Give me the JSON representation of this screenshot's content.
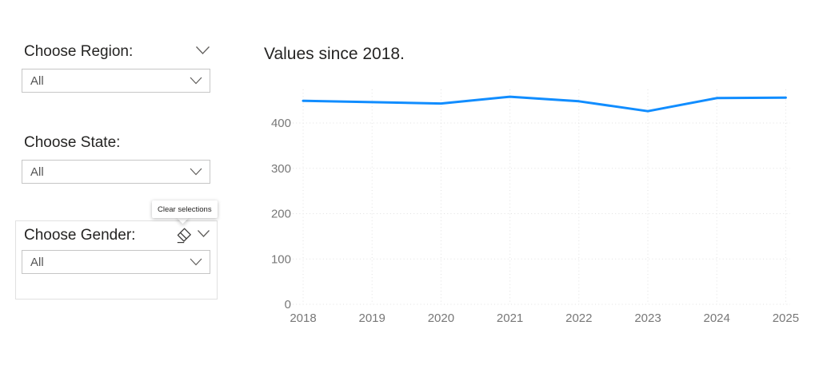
{
  "slicers": {
    "region": {
      "label": "Choose Region:",
      "value": "All"
    },
    "state": {
      "label": "Choose State:",
      "value": "All"
    },
    "gender": {
      "label": "Choose Gender:",
      "value": "All"
    }
  },
  "gender_tooltip": {
    "text": "Clear selections"
  },
  "icons": {
    "header_chevron": "chevron-down",
    "dropdown_chevron": "chevron-down",
    "clear_selections": "eraser"
  },
  "colors": {
    "line": "#118DFF",
    "grid": "#E1E1E1",
    "axis_label": "#777777",
    "title_text": "#252423",
    "slicer_text": "#252423",
    "value_text": "#555555",
    "dropdown_border": "#C6C6C6"
  },
  "chart_data": {
    "type": "line",
    "title": "Values since 2018.",
    "x": [
      2018,
      2019,
      2020,
      2021,
      2022,
      2023,
      2024,
      2025
    ],
    "values": [
      449,
      446,
      443,
      458,
      448,
      426,
      455,
      456
    ],
    "xlabel": "",
    "ylabel": "",
    "yticks": [
      0,
      100,
      200,
      300,
      400
    ],
    "ylim": [
      0,
      474
    ],
    "grid": "dotted",
    "legend": "none",
    "line_color": "#118DFF"
  }
}
